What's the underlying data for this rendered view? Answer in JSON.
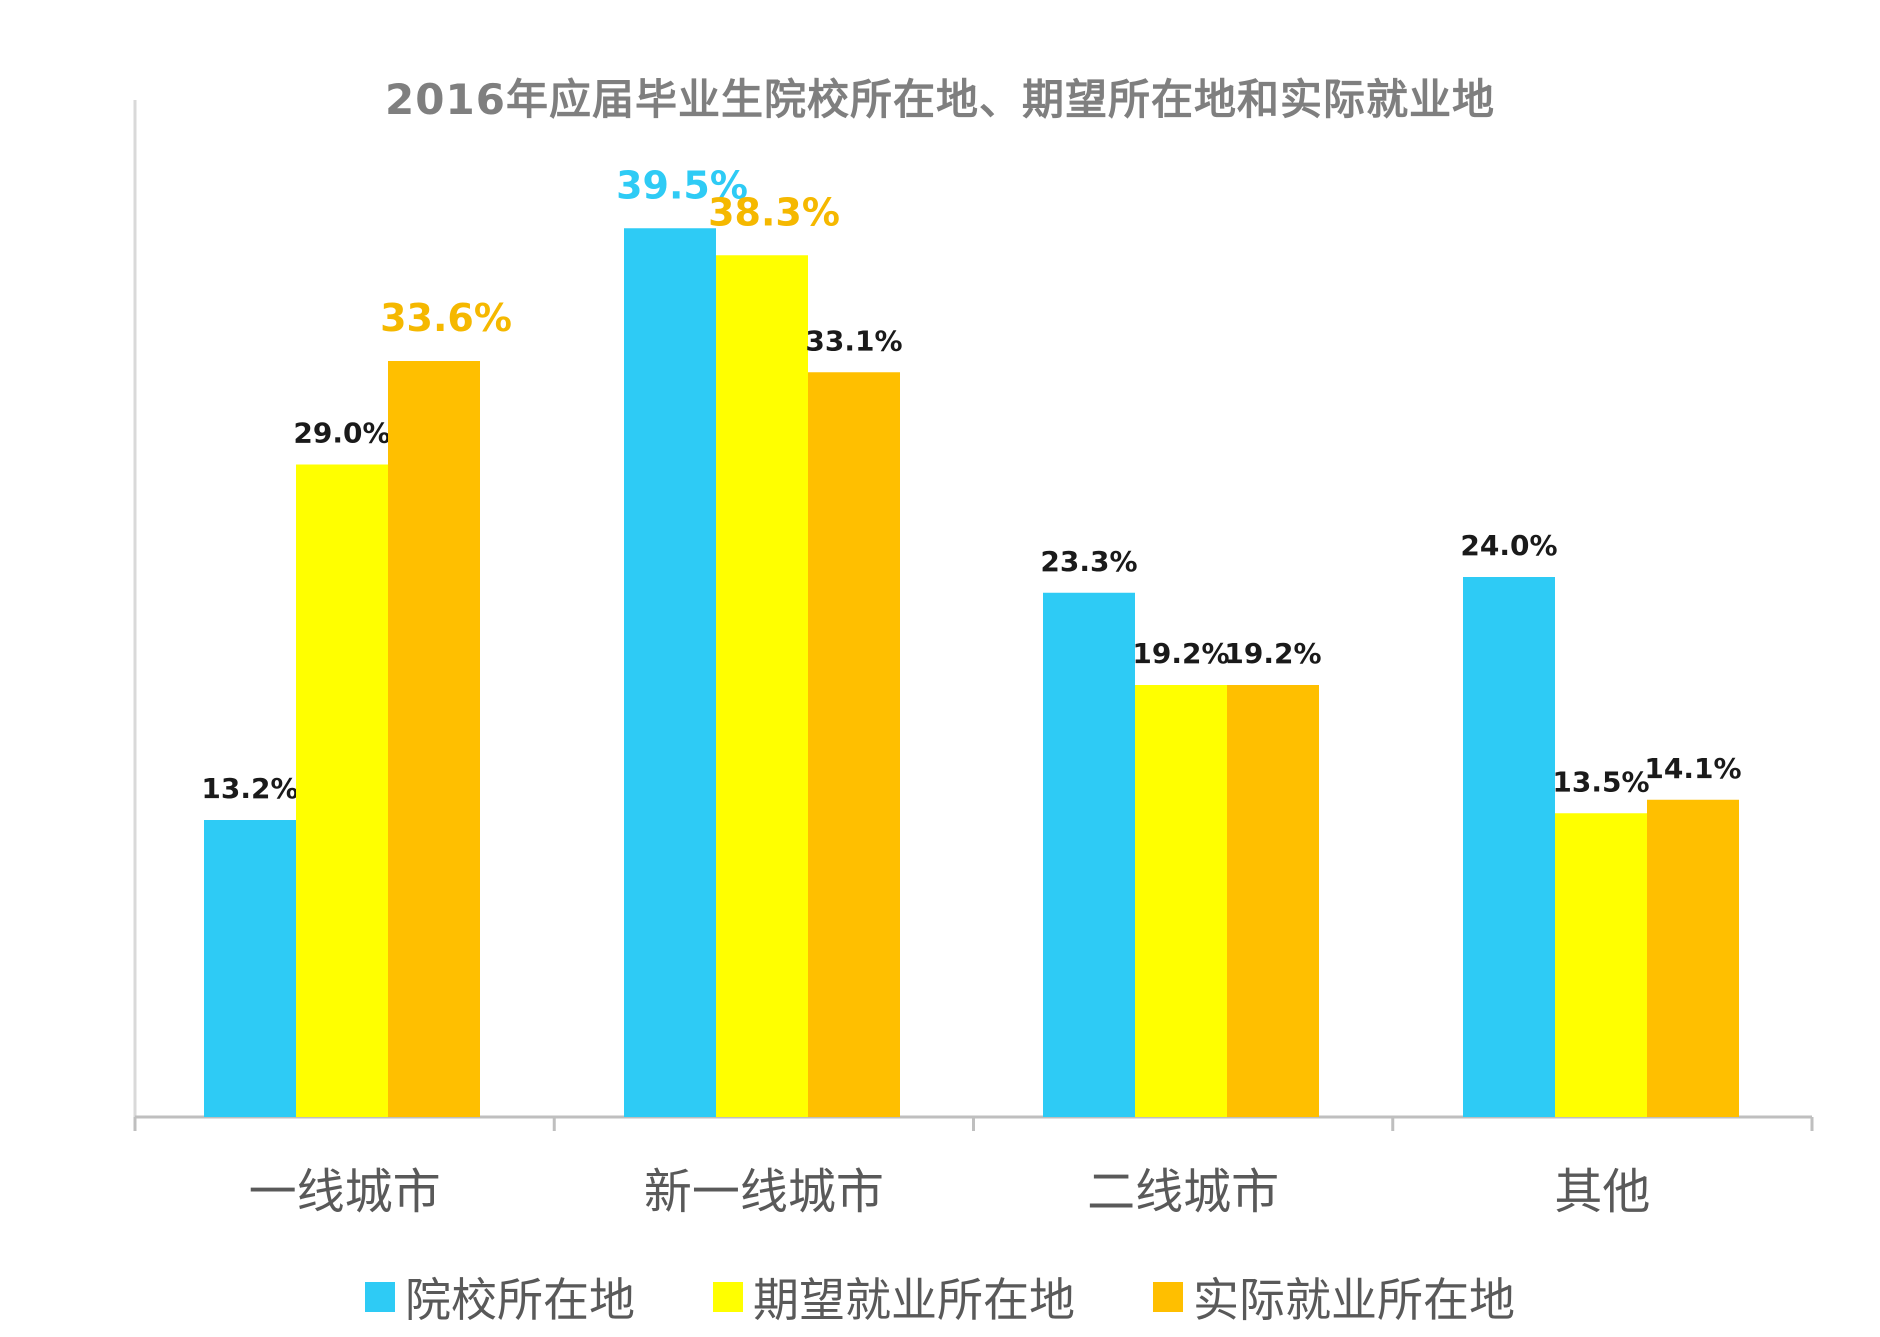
{
  "chart_data": {
    "type": "bar",
    "title": "2016年应届毕业生院校所在地、期望所在地和实际就业地",
    "categories": [
      "一线城市",
      "新一线城市",
      "二线城市",
      "其他"
    ],
    "series": [
      {
        "name": "院校所在地",
        "color": "#2ecbf5",
        "values": [
          13.2,
          39.5,
          23.3,
          24.0
        ]
      },
      {
        "name": "期望就业所在地",
        "color": "#ffff00",
        "values": [
          29.0,
          38.3,
          19.2,
          13.5
        ]
      },
      {
        "name": "实际就业所在地",
        "color": "#ffbf00",
        "values": [
          33.6,
          33.1,
          19.2,
          14.1
        ]
      }
    ],
    "data_labels": [
      [
        "13.2%",
        "29.0%",
        "33.6%"
      ],
      [
        "39.5%",
        "38.3%",
        "33.1%"
      ],
      [
        "23.3%",
        "19.2%",
        "19.2%"
      ],
      [
        "24.0%",
        "13.5%",
        "14.1%"
      ]
    ],
    "highlight_labels": [
      {
        "category": 0,
        "series": 2,
        "color": "#f5b800"
      },
      {
        "category": 1,
        "series": 0,
        "color": "#2ecbf5"
      },
      {
        "category": 1,
        "series": 1,
        "color": "#f5b800"
      }
    ],
    "ylim": [
      0,
      45
    ],
    "grid": false,
    "legend_position": "bottom"
  }
}
